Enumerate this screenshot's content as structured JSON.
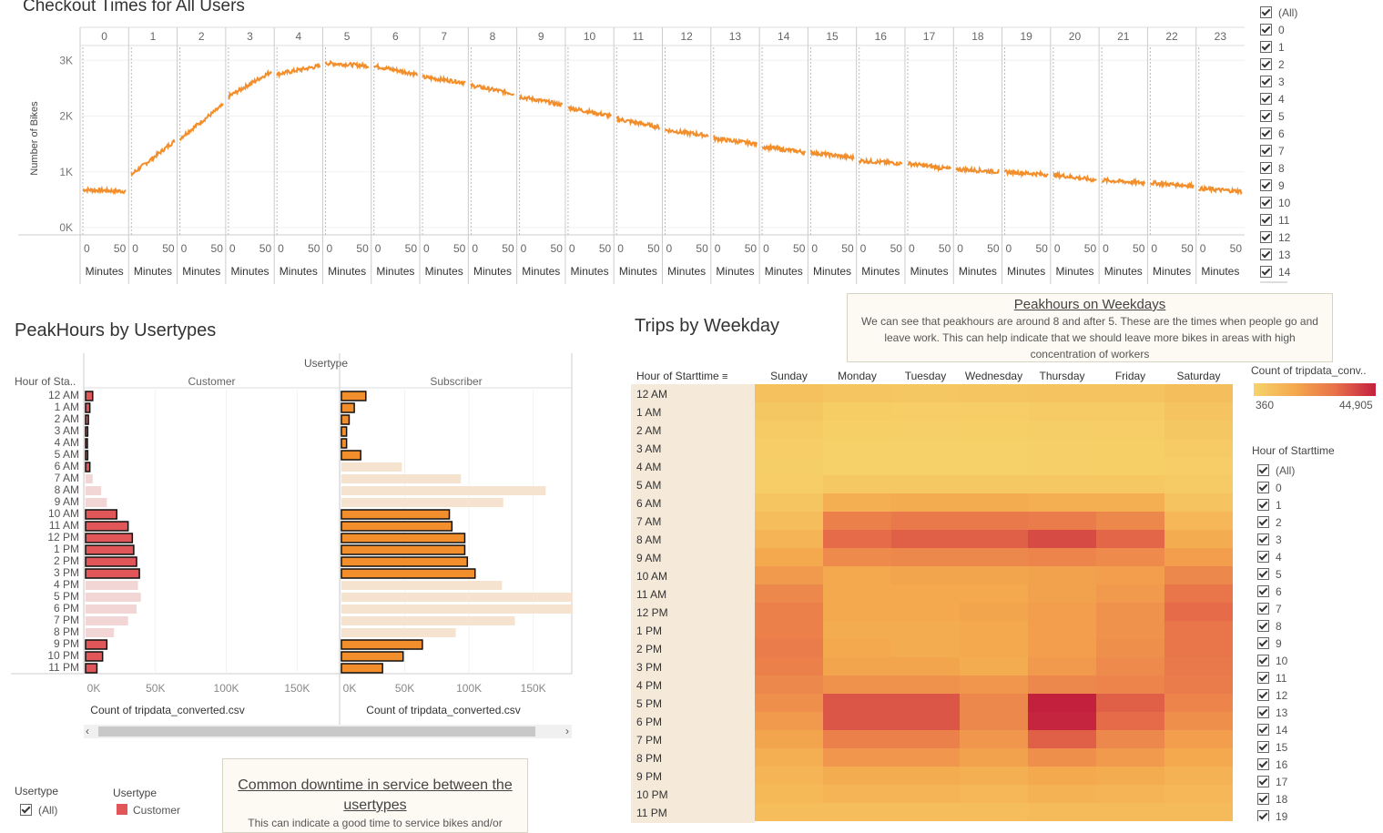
{
  "checkout": {
    "title": "Checkout Times for All Users",
    "ylabel": "Number of Bikes",
    "yticks": [
      "0K",
      "1K",
      "2K",
      "3K"
    ],
    "hours": [
      "0",
      "1",
      "2",
      "3",
      "4",
      "5",
      "6",
      "7",
      "8",
      "9",
      "10",
      "11",
      "12",
      "13",
      "14",
      "15",
      "16",
      "17",
      "18",
      "19",
      "20",
      "21",
      "22",
      "23"
    ],
    "minute_ticks": [
      "0",
      "50"
    ],
    "xlabel": "Minutes"
  },
  "right_filter": {
    "items": [
      "(All)",
      "0",
      "1",
      "2",
      "3",
      "4",
      "5",
      "6",
      "7",
      "8",
      "9",
      "10",
      "11",
      "12",
      "13",
      "14"
    ]
  },
  "peak_note": {
    "title": "Peakhours on Weekdays",
    "text": "We can see that peakhours are around 8 and after 5. These are the times when people go and leave work. This can help indicate that we should leave more bikes in areas with high concentration of workers"
  },
  "peakhours": {
    "title": "PeakHours by Usertypes",
    "usertype_label": "Usertype",
    "row_header": "Hour of Sta..",
    "customer_label": "Customer",
    "subscriber_label": "Subscriber",
    "xticks": [
      "0K",
      "50K",
      "100K",
      "150K"
    ],
    "xlabel": "Count of tripdata_converted.csv"
  },
  "legend_bottom": {
    "filter_title": "Usertype",
    "filter_item": "(All)",
    "color_title": "Usertype",
    "color_item": "Customer"
  },
  "downtime_note": {
    "title": "Common downtime in service between the usertypes",
    "text": "This can indicate a good time to service bikes and/or"
  },
  "weekday": {
    "title": "Trips by Weekday",
    "row_header": "Hour of Starttime",
    "days": [
      "Sunday",
      "Monday",
      "Tuesday",
      "Wednesday",
      "Thursday",
      "Friday",
      "Saturday"
    ],
    "color_title": "Count of tripdata_conv..",
    "color_min": "360",
    "color_max": "44,905",
    "filter_title": "Hour of Starttime",
    "filter_items": [
      "(All)",
      "0",
      "1",
      "2",
      "3",
      "4",
      "5",
      "6",
      "7",
      "8",
      "9",
      "10",
      "11",
      "12",
      "13",
      "14",
      "15",
      "16",
      "17",
      "18",
      "19"
    ]
  },
  "chart_data": [
    {
      "type": "line",
      "title": "Checkout Times for All Users",
      "ylabel": "Number of Bikes",
      "xlabel": "Minutes",
      "ylim": [
        0,
        3200
      ],
      "series": [
        {
          "hours": [
            0,
            1,
            2,
            3,
            4,
            5,
            6,
            7,
            8,
            9,
            10,
            11,
            12,
            13,
            14,
            15,
            16,
            17,
            18,
            19,
            20,
            21,
            22,
            23
          ],
          "start_values": [
            680,
            950,
            1600,
            2350,
            2750,
            2950,
            2900,
            2700,
            2550,
            2350,
            2150,
            1950,
            1750,
            1600,
            1450,
            1350,
            1200,
            1150,
            1050,
            1000,
            950,
            850,
            800,
            700
          ],
          "end_values": [
            650,
            1550,
            2200,
            2800,
            2900,
            2900,
            2750,
            2600,
            2400,
            2200,
            2000,
            1800,
            1650,
            1500,
            1350,
            1250,
            1150,
            1050,
            1000,
            950,
            850,
            800,
            750,
            650
          ]
        }
      ]
    },
    {
      "type": "bar",
      "title": "PeakHours by Usertypes",
      "xlabel": "Count of tripdata_converted.csv",
      "categories": [
        "12 AM",
        "1 AM",
        "2 AM",
        "3 AM",
        "4 AM",
        "5 AM",
        "6 AM",
        "7 AM",
        "8 AM",
        "9 AM",
        "10 AM",
        "11 AM",
        "12 PM",
        "1 PM",
        "2 PM",
        "3 PM",
        "4 PM",
        "5 PM",
        "6 PM",
        "7 PM",
        "8 PM",
        "9 PM",
        "10 PM",
        "11 PM"
      ],
      "xlim": [
        0,
        180000
      ],
      "series": [
        {
          "name": "Customer",
          "values": [
            5000,
            3000,
            2000,
            1500,
            1000,
            1500,
            3000,
            5000,
            11000,
            15000,
            22000,
            30000,
            33000,
            34000,
            36000,
            38000,
            37000,
            39000,
            36000,
            30000,
            20000,
            15000,
            12000,
            8000
          ],
          "highlighted": [
            true,
            true,
            true,
            true,
            true,
            true,
            true,
            false,
            false,
            false,
            true,
            true,
            true,
            true,
            true,
            true,
            false,
            false,
            false,
            false,
            false,
            true,
            true,
            true
          ]
        },
        {
          "name": "Subscriber",
          "values": [
            19000,
            10000,
            6000,
            4000,
            4000,
            15000,
            47000,
            93000,
            159000,
            126000,
            84000,
            86000,
            96000,
            96000,
            98000,
            104000,
            125000,
            180000,
            180000,
            135000,
            89000,
            63000,
            48000,
            32000
          ],
          "highlighted": [
            true,
            true,
            true,
            true,
            true,
            true,
            false,
            false,
            false,
            false,
            true,
            true,
            true,
            true,
            true,
            true,
            false,
            false,
            false,
            false,
            false,
            true,
            true,
            true
          ]
        }
      ]
    },
    {
      "type": "heatmap",
      "title": "Trips by Weekday",
      "x": [
        "Sunday",
        "Monday",
        "Tuesday",
        "Wednesday",
        "Thursday",
        "Friday",
        "Saturday"
      ],
      "y": [
        "12 AM",
        "1 AM",
        "2 AM",
        "3 AM",
        "4 AM",
        "5 AM",
        "6 AM",
        "7 AM",
        "8 AM",
        "9 AM",
        "10 AM",
        "11 AM",
        "12 PM",
        "1 PM",
        "2 PM",
        "3 PM",
        "4 PM",
        "5 PM",
        "6 PM",
        "7 PM",
        "8 PM",
        "9 PM",
        "10 PM",
        "11 PM"
      ],
      "color_range": [
        360,
        44905
      ],
      "values": [
        [
          6600,
          5100,
          4600,
          5100,
          5600,
          6100,
          7600
        ],
        [
          4600,
          2800,
          2300,
          2600,
          3100,
          3500,
          5600
        ],
        [
          3600,
          1800,
          1600,
          1800,
          2100,
          2500,
          4600
        ],
        [
          2600,
          1300,
          1100,
          1300,
          1600,
          1800,
          3600
        ],
        [
          2100,
          1300,
          1100,
          1300,
          1600,
          1800,
          2600
        ],
        [
          2600,
          4100,
          4100,
          4100,
          4100,
          4100,
          3100
        ],
        [
          5100,
          13000,
          14000,
          14000,
          13000,
          13000,
          6100
        ],
        [
          8100,
          26000,
          28000,
          28000,
          27000,
          24000,
          10000
        ],
        [
          11000,
          31000,
          33000,
          33000,
          37000,
          32000,
          14000
        ],
        [
          15000,
          23000,
          24000,
          24000,
          25000,
          23000,
          18000
        ],
        [
          19000,
          15000,
          16000,
          16000,
          17000,
          18000,
          24000
        ],
        [
          24000,
          15000,
          15000,
          15000,
          17000,
          19000,
          29000
        ],
        [
          26000,
          15000,
          15000,
          16000,
          18000,
          21000,
          31000
        ],
        [
          26000,
          14000,
          14000,
          15000,
          18000,
          21000,
          29000
        ],
        [
          27000,
          15000,
          14000,
          15000,
          18000,
          22000,
          29000
        ],
        [
          26000,
          16000,
          16000,
          14000,
          19000,
          23000,
          28000
        ],
        [
          24000,
          21000,
          21000,
          20000,
          24000,
          25000,
          27000
        ],
        [
          22000,
          35000,
          35000,
          24000,
          45000,
          33000,
          25000
        ],
        [
          19000,
          35000,
          35000,
          24000,
          44000,
          31000,
          22000
        ],
        [
          16000,
          26000,
          26000,
          20000,
          33000,
          24000,
          18000
        ],
        [
          13000,
          20000,
          20000,
          17000,
          22000,
          19000,
          15000
        ],
        [
          11000,
          14000,
          14000,
          13000,
          15000,
          14000,
          12000
        ],
        [
          9600,
          11000,
          11000,
          10000,
          12000,
          11000,
          10000
        ],
        [
          8100,
          8100,
          8100,
          8100,
          9100,
          9100,
          9100
        ]
      ]
    }
  ]
}
